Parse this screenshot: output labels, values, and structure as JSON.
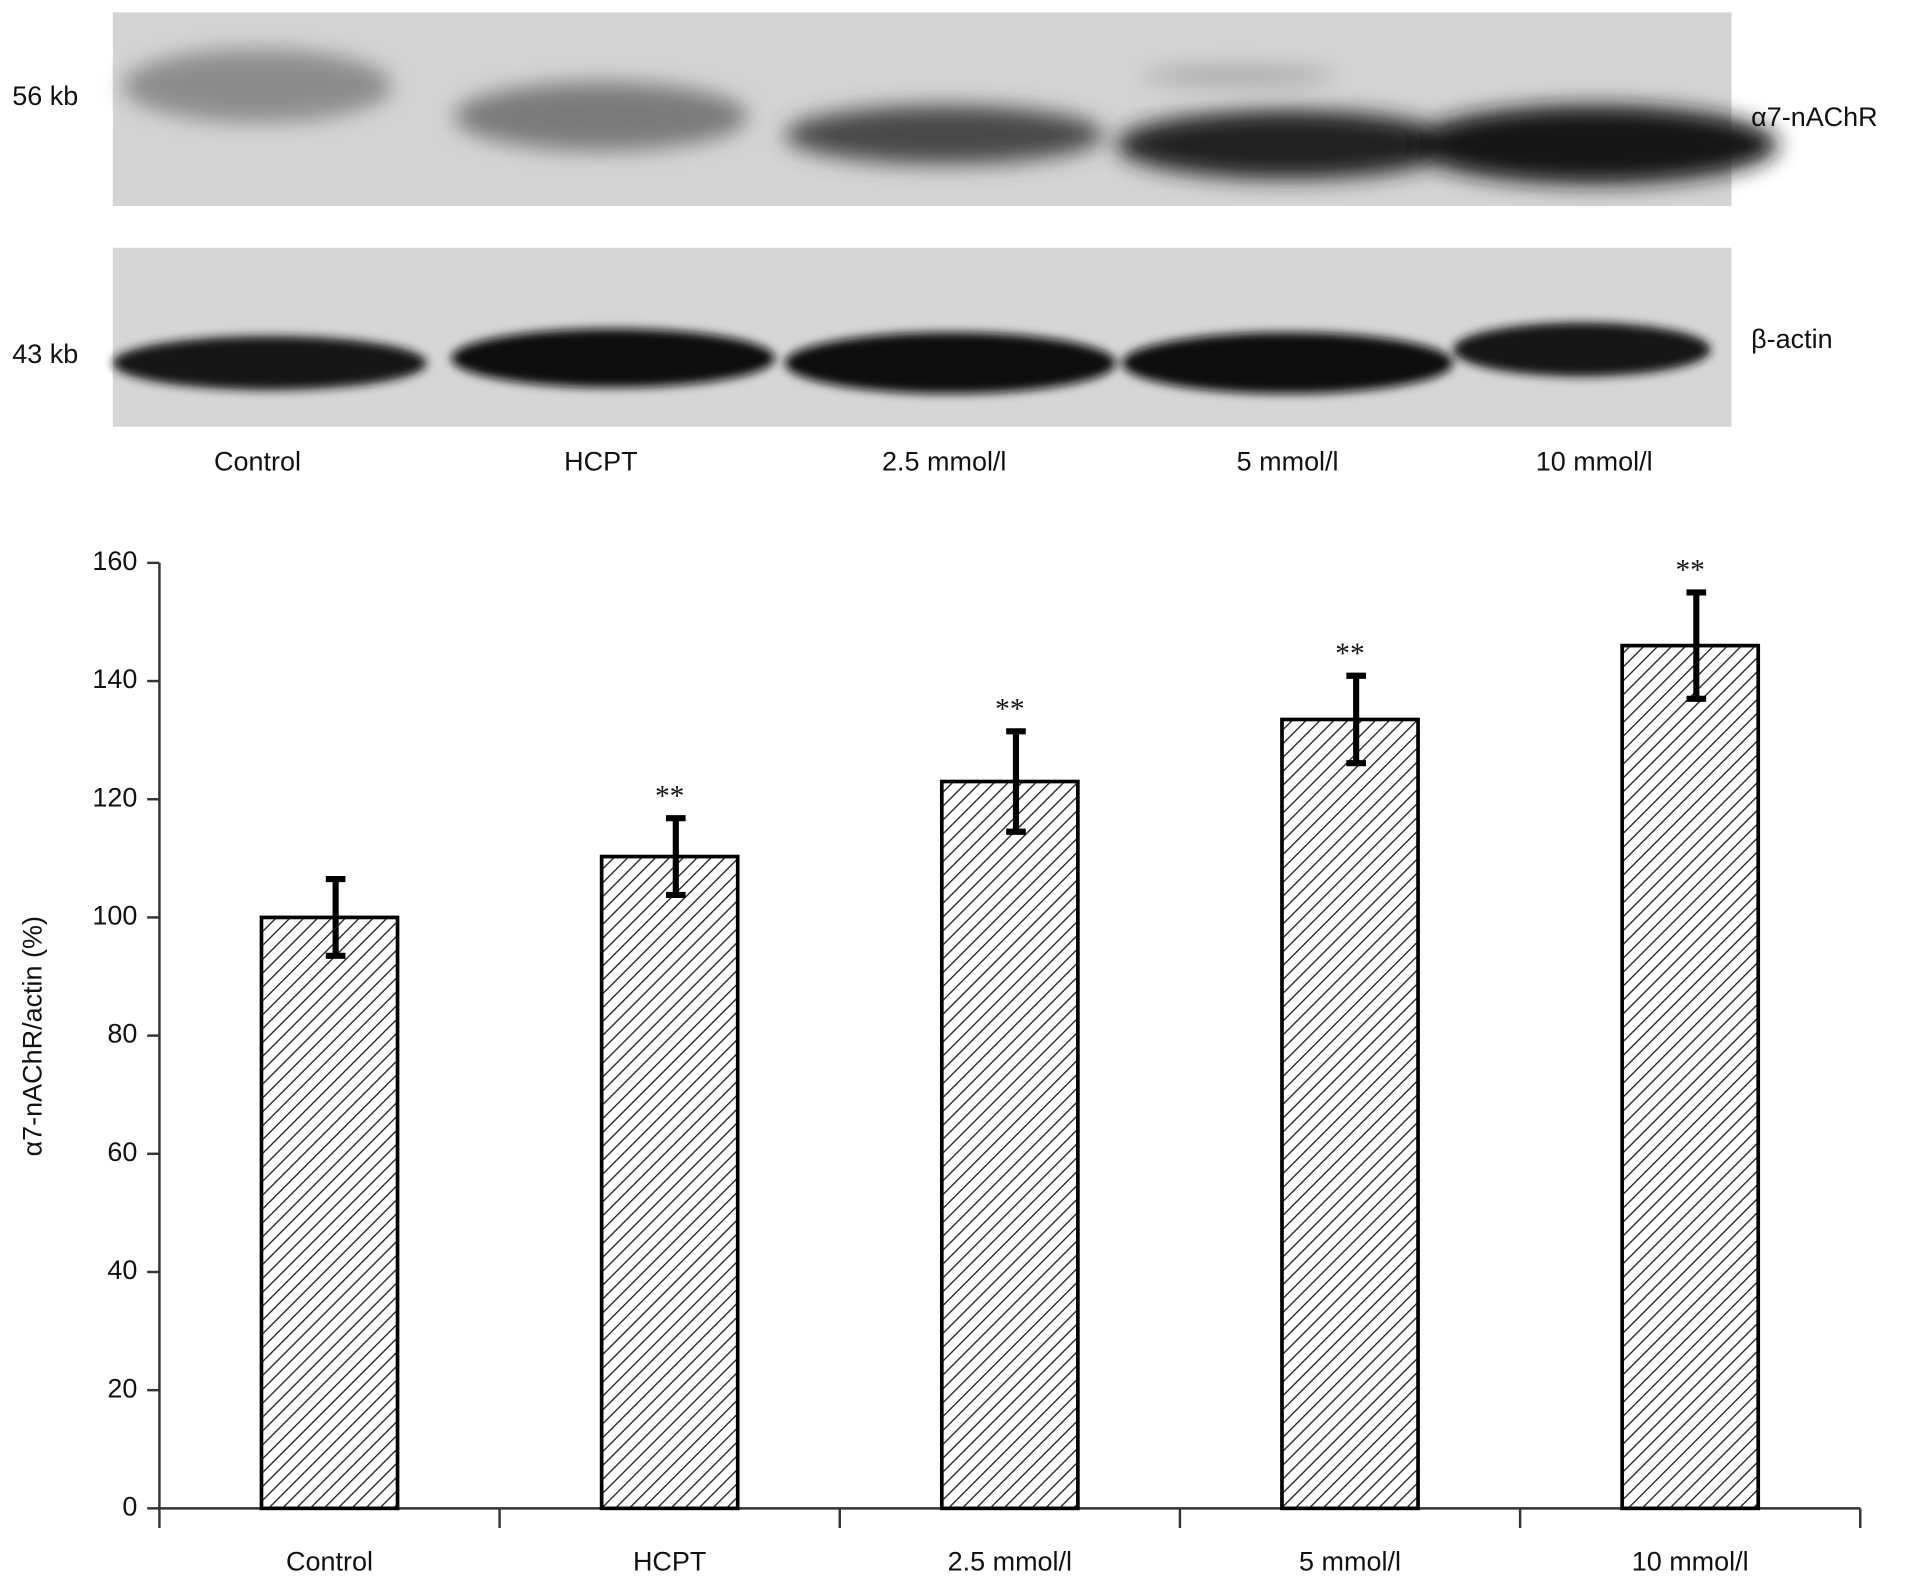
{
  "blot": {
    "rows": [
      {
        "size": "56 kb",
        "protein": "α7-nAChR"
      },
      {
        "size": "43 kb",
        "protein": "β-actin"
      }
    ],
    "lanes": [
      "Control",
      "HCPT",
      "2.5 mmol/l",
      "5 mmol/l",
      "10 mmol/l"
    ]
  },
  "chart_data": {
    "type": "bar",
    "y_label": "α7-nAChR/actin (%)",
    "categories": [
      "Control",
      "HCPT",
      "2.5 mmol/l",
      "5 mmol/l",
      "10 mmol/l"
    ],
    "values": [
      100,
      110.3,
      123,
      133.5,
      146
    ],
    "errors": [
      6.5,
      6.5,
      8.5,
      7.4,
      9
    ],
    "significance": [
      null,
      "**",
      "**",
      "**",
      "**"
    ],
    "color": "#000000",
    "ylim": [
      0,
      160
    ],
    "yticks": [
      0,
      20,
      40,
      60,
      80,
      100,
      120,
      140,
      160
    ]
  }
}
